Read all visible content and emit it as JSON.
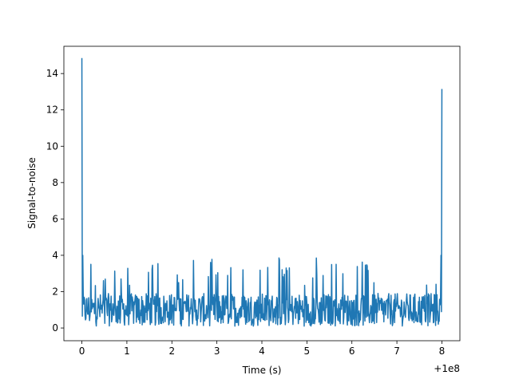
{
  "chart_data": {
    "type": "line",
    "title": "",
    "xlabel": "Time (s)",
    "ylabel": "Signal-to-noise",
    "x_offset_label": "+1e8",
    "xlim": [
      -0.4,
      8.4
    ],
    "ylim": [
      -0.7,
      15.5
    ],
    "xticks": [
      0,
      1,
      2,
      3,
      4,
      5,
      6,
      7,
      8
    ],
    "xtick_labels": [
      "0",
      "1",
      "2",
      "3",
      "4",
      "5",
      "6",
      "7",
      "8"
    ],
    "yticks": [
      0,
      2,
      4,
      6,
      8,
      10,
      12,
      14
    ],
    "ytick_labels": [
      "0",
      "2",
      "4",
      "6",
      "8",
      "10",
      "12",
      "14"
    ],
    "grid": false,
    "legend": "none",
    "series": [
      {
        "color": "#1f77b4",
        "x_start": 0,
        "x_end": 8,
        "x_step": 0.01,
        "noise_band": [
          0.0,
          3.9
        ],
        "typical_level": 1.0,
        "spikes": [
          {
            "x": 0.0,
            "y": 14.85
          },
          {
            "x": 0.02,
            "y": 4.0
          },
          {
            "x": 8.0,
            "y": 13.15
          },
          {
            "x": 7.98,
            "y": 4.0
          }
        ]
      }
    ]
  }
}
